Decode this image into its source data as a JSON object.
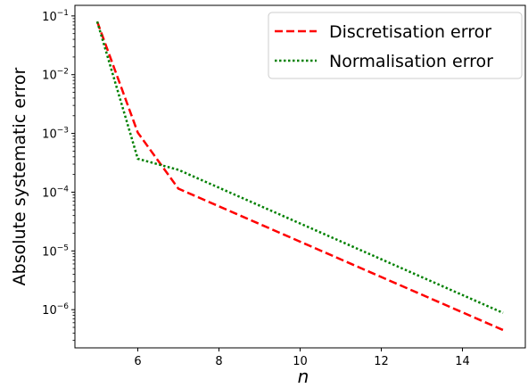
{
  "chart_data": {
    "type": "line",
    "xlabel": "n",
    "ylabel": "Absolute systematic error",
    "y_scale": "log",
    "xlim": [
      4.45,
      15.55
    ],
    "ylim_exp": [
      -6.65,
      -0.82
    ],
    "x_ticks": [
      6,
      8,
      10,
      12,
      14
    ],
    "y_ticks": [
      {
        "exp": -6,
        "mantissa": "10",
        "power": "−6"
      },
      {
        "exp": -5,
        "mantissa": "10",
        "power": "−5"
      },
      {
        "exp": -4,
        "mantissa": "10",
        "power": "−4"
      },
      {
        "exp": -3,
        "mantissa": "10",
        "power": "−3"
      },
      {
        "exp": -2,
        "mantissa": "10",
        "power": "−2"
      },
      {
        "exp": -1,
        "mantissa": "10",
        "power": "−1"
      }
    ],
    "legend_position": "top-right",
    "grid": false,
    "series": [
      {
        "name": "Discretisation error",
        "color": "#ff0000",
        "style": "dashed",
        "x": [
          5,
          6,
          7,
          15
        ],
        "y": [
          0.08,
          0.00103,
          0.000115,
          4.5e-07
        ]
      },
      {
        "name": "Normalisation error",
        "color": "#008000",
        "style": "dotted",
        "x": [
          5,
          6,
          7,
          15
        ],
        "y": [
          0.08,
          0.00037,
          0.00024,
          8.8e-07
        ]
      }
    ]
  }
}
